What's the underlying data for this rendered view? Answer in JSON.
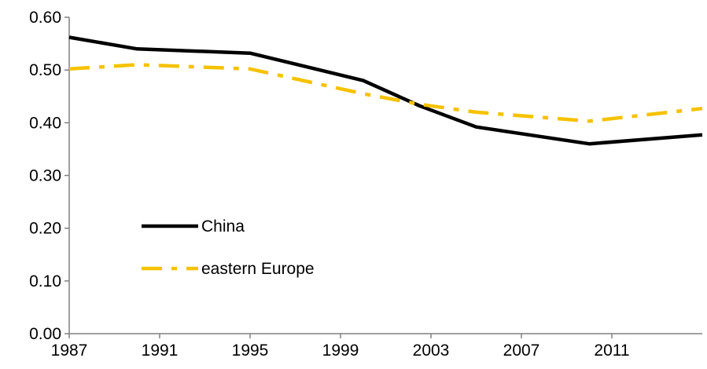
{
  "chart_data": {
    "type": "line",
    "title": "",
    "xlabel": "",
    "ylabel": "",
    "xlim": [
      1987,
      2015
    ],
    "ylim": [
      0,
      0.6
    ],
    "grid": false,
    "legend_position": "lower-left",
    "x_ticks": [
      1987,
      1991,
      1995,
      1999,
      2003,
      2007,
      2011
    ],
    "y_ticks": [
      0,
      0.1,
      0.2,
      0.3,
      0.4,
      0.5,
      0.6
    ],
    "x_tick_labels": [
      "1987",
      "1991",
      "1995",
      "1999",
      "2003",
      "2007",
      "2011"
    ],
    "y_tick_labels": [
      "0.00",
      "0.10",
      "0.20",
      "0.30",
      "0.40",
      "0.50",
      "0.60"
    ],
    "series": [
      {
        "name": "China",
        "color": "#000000",
        "style": "solid",
        "x": [
          1987,
          1990,
          1995,
          2000,
          2002.5,
          2005,
          2010,
          2015
        ],
        "y": [
          0.562,
          0.54,
          0.532,
          0.48,
          0.432,
          0.392,
          0.36,
          0.377
        ]
      },
      {
        "name": "eastern Europe",
        "color": "#F5C200",
        "style": "dash-dot",
        "x": [
          1987,
          1990,
          1995,
          2000,
          2002.5,
          2005,
          2010,
          2015
        ],
        "y": [
          0.502,
          0.51,
          0.502,
          0.455,
          0.435,
          0.42,
          0.403,
          0.427
        ]
      }
    ]
  }
}
